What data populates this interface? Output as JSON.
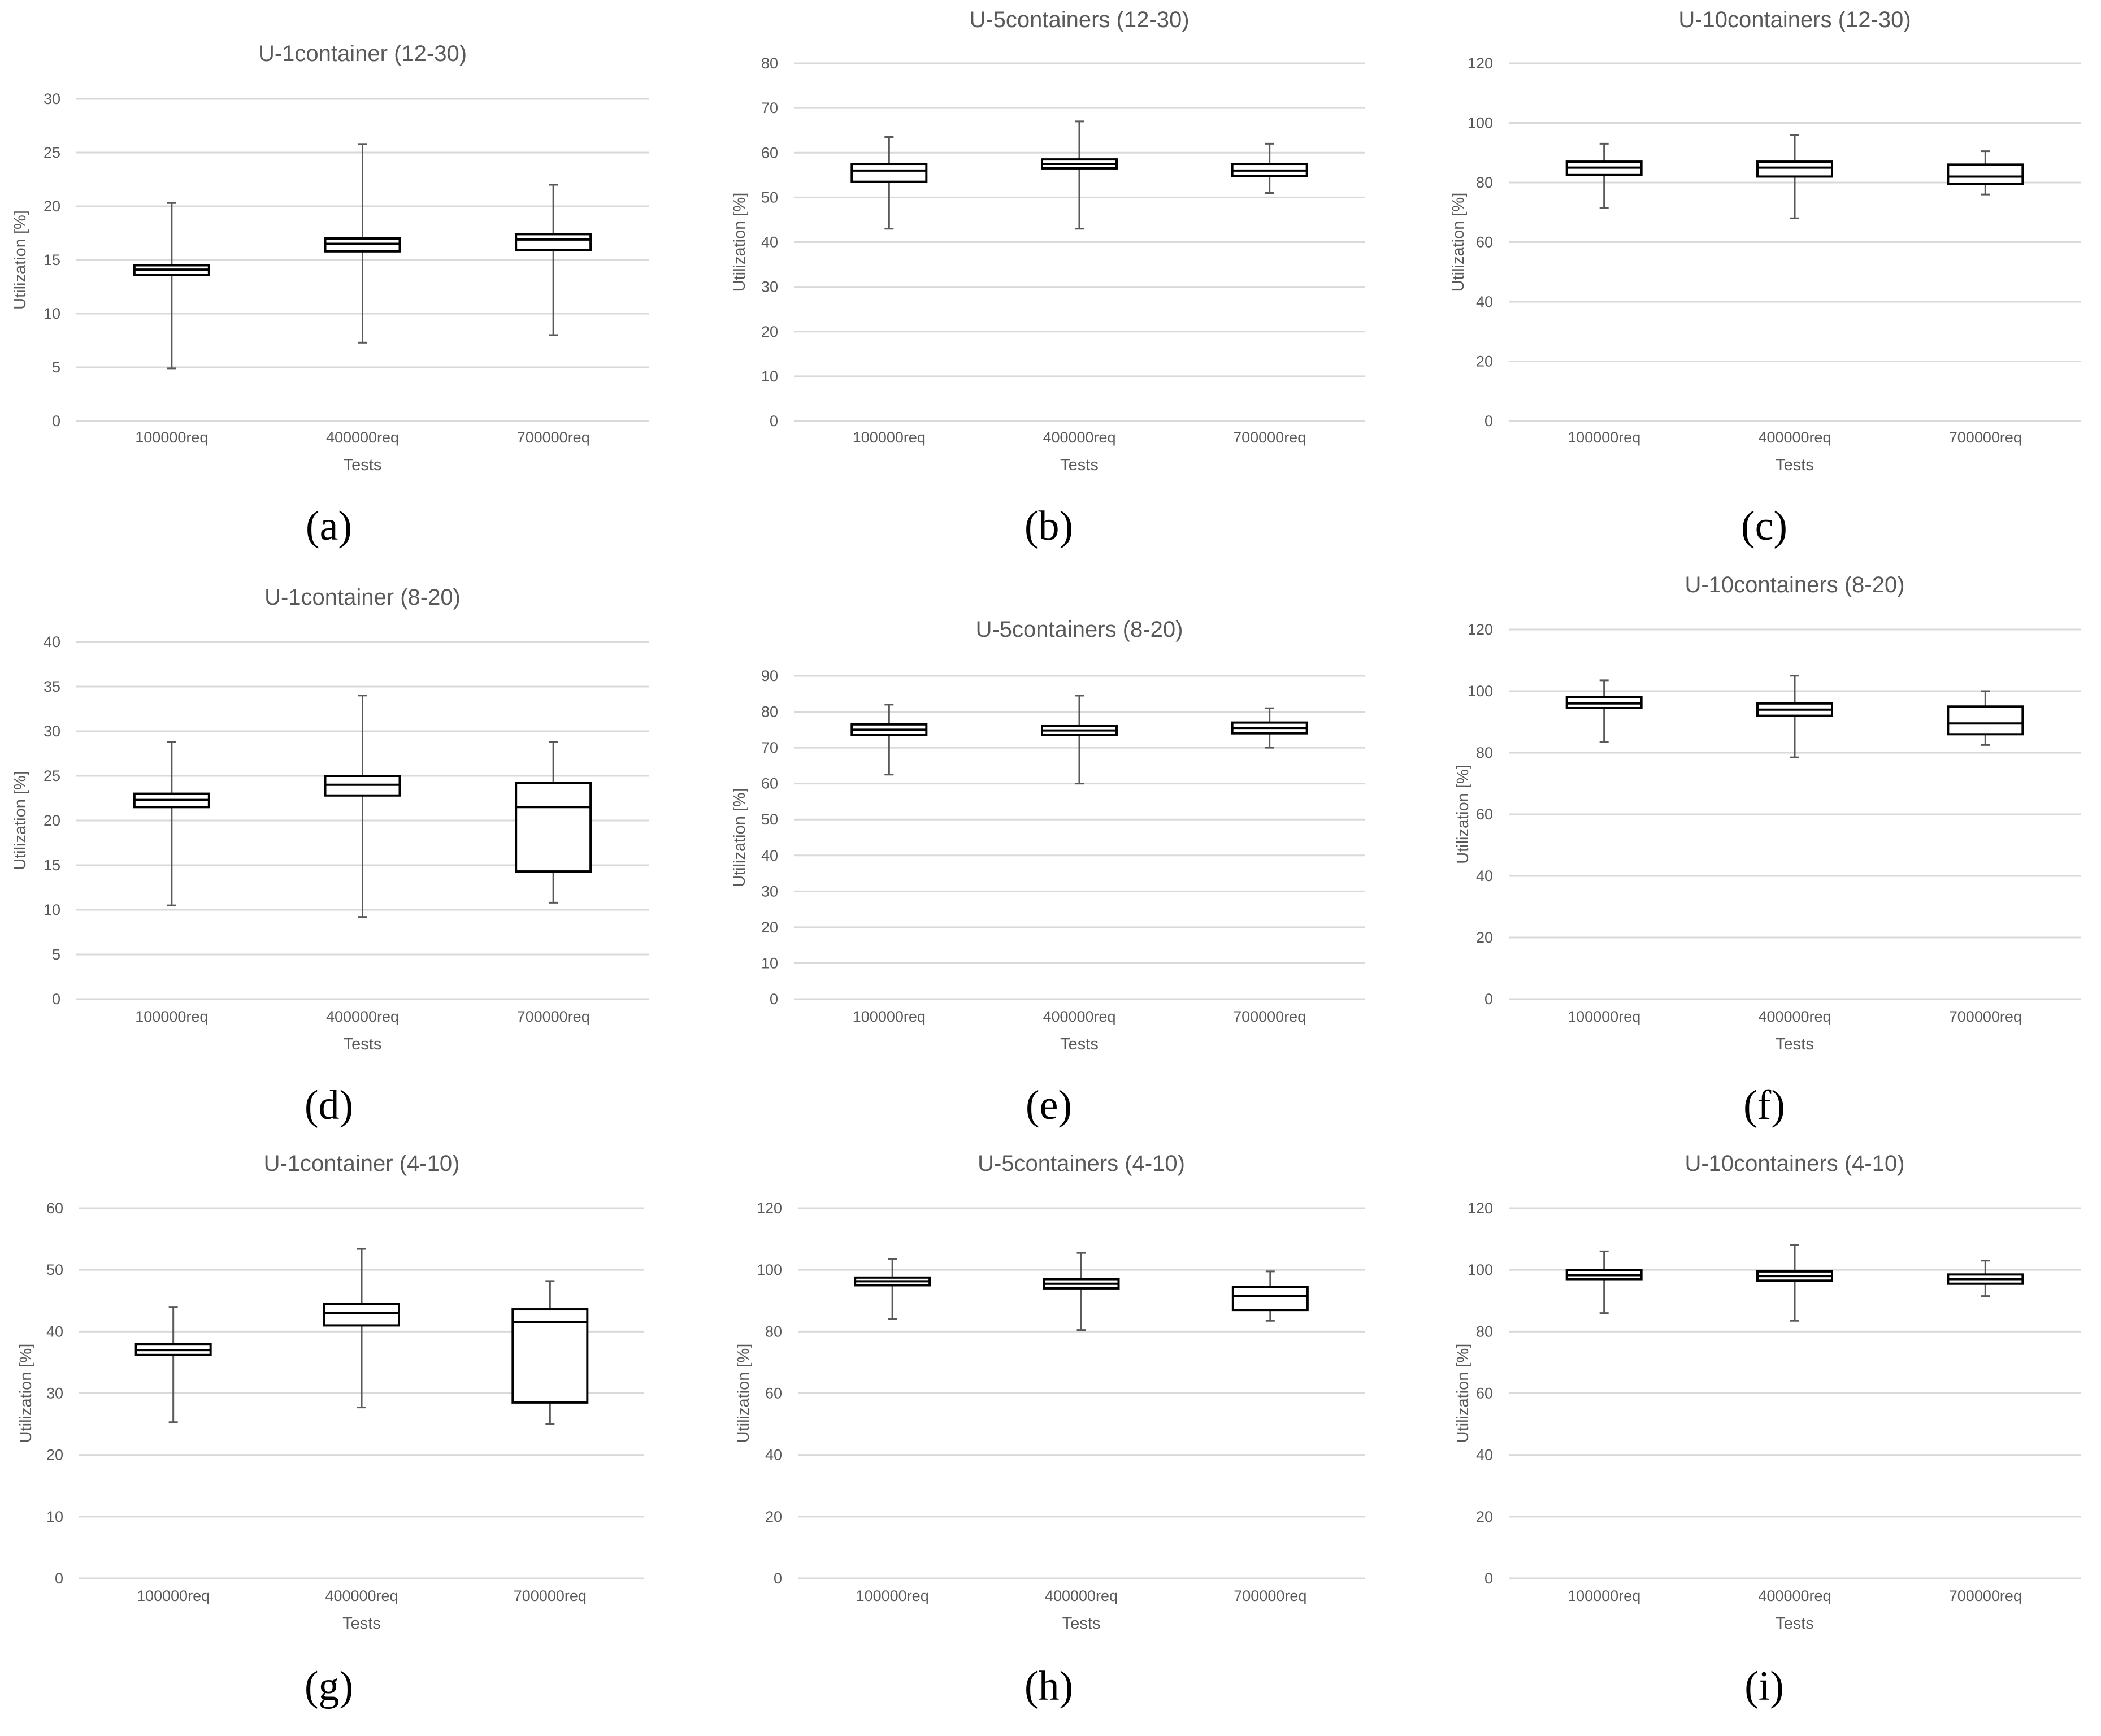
{
  "colors": {
    "grid": "#d9d9d9",
    "text": "#595959",
    "box_stroke": "#000000",
    "whisker": "#595959",
    "background": "#ffffff"
  },
  "chart_data": [
    {
      "type": "box",
      "panel": "(a)",
      "title": "U-1container (12-30)",
      "xlabel": "Tests",
      "ylabel": "Utilization [%]",
      "categories": [
        "100000req",
        "400000req",
        "700000req"
      ],
      "ylim": [
        0,
        30
      ],
      "yticks": [
        0,
        5,
        10,
        15,
        20,
        25,
        30
      ],
      "grid": true,
      "boxes": [
        {
          "min": 4.9,
          "q1": 13.6,
          "median": 14.1,
          "q3": 14.5,
          "max": 20.3
        },
        {
          "min": 7.3,
          "q1": 15.8,
          "median": 16.5,
          "q3": 17.0,
          "max": 25.8
        },
        {
          "min": 8.0,
          "q1": 15.9,
          "median": 16.9,
          "q3": 17.4,
          "max": 22.0
        }
      ]
    },
    {
      "type": "box",
      "panel": "(b)",
      "title": "U-5containers (12-30)",
      "xlabel": "Tests",
      "ylabel": "Utilization [%]",
      "categories": [
        "100000req",
        "400000req",
        "700000req"
      ],
      "ylim": [
        0,
        80
      ],
      "yticks": [
        0,
        10,
        20,
        30,
        40,
        50,
        60,
        70,
        80
      ],
      "grid": true,
      "boxes": [
        {
          "min": 43,
          "q1": 53.5,
          "median": 56,
          "q3": 57.5,
          "max": 63.5
        },
        {
          "min": 43,
          "q1": 56.5,
          "median": 57.5,
          "q3": 58.5,
          "max": 67
        },
        {
          "min": 51,
          "q1": 54.8,
          "median": 56,
          "q3": 57.5,
          "max": 62
        }
      ]
    },
    {
      "type": "box",
      "panel": "(c)",
      "title": "U-10containers (12-30)",
      "xlabel": "Tests",
      "ylabel": "Utilization [%]",
      "categories": [
        "100000req",
        "400000req",
        "700000req"
      ],
      "ylim": [
        0,
        120
      ],
      "yticks": [
        0,
        20,
        40,
        60,
        80,
        100,
        120
      ],
      "grid": true,
      "boxes": [
        {
          "min": 71.5,
          "q1": 82.5,
          "median": 85,
          "q3": 87,
          "max": 93
        },
        {
          "min": 68,
          "q1": 82,
          "median": 85,
          "q3": 87,
          "max": 96
        },
        {
          "min": 76,
          "q1": 79.5,
          "median": 82,
          "q3": 86,
          "max": 90.5
        }
      ]
    },
    {
      "type": "box",
      "panel": "(d)",
      "title": "U-1container (8-20)",
      "xlabel": "Tests",
      "ylabel": "Utilization [%]",
      "categories": [
        "100000req",
        "400000req",
        "700000req"
      ],
      "ylim": [
        0,
        40
      ],
      "yticks": [
        0,
        5,
        10,
        15,
        20,
        25,
        30,
        35,
        40
      ],
      "grid": true,
      "boxes": [
        {
          "min": 10.5,
          "q1": 21.5,
          "median": 22.3,
          "q3": 23,
          "max": 28.8
        },
        {
          "min": 9.2,
          "q1": 22.8,
          "median": 24,
          "q3": 25,
          "max": 34
        },
        {
          "min": 10.8,
          "q1": 14.3,
          "median": 21.5,
          "q3": 24.2,
          "max": 28.8
        }
      ]
    },
    {
      "type": "box",
      "panel": "(e)",
      "title": "U-5containers (8-20)",
      "xlabel": "Tests",
      "ylabel": "Utilization [%]",
      "categories": [
        "100000req",
        "400000req",
        "700000req"
      ],
      "ylim": [
        0,
        90
      ],
      "yticks": [
        0,
        10,
        20,
        30,
        40,
        50,
        60,
        70,
        80,
        90
      ],
      "grid": true,
      "boxes": [
        {
          "min": 62.5,
          "q1": 73.5,
          "median": 75,
          "q3": 76.5,
          "max": 82
        },
        {
          "min": 60,
          "q1": 73.5,
          "median": 74.8,
          "q3": 76,
          "max": 84.5
        },
        {
          "min": 70,
          "q1": 74,
          "median": 75.5,
          "q3": 77,
          "max": 81
        }
      ]
    },
    {
      "type": "box",
      "panel": "(f)",
      "title": "U-10containers (8-20)",
      "xlabel": "Tests",
      "ylabel": "Utilization [%]",
      "categories": [
        "100000req",
        "400000req",
        "700000req"
      ],
      "ylim": [
        0,
        120
      ],
      "yticks": [
        0,
        20,
        40,
        60,
        80,
        100,
        120
      ],
      "grid": true,
      "boxes": [
        {
          "min": 83.5,
          "q1": 94.5,
          "median": 96,
          "q3": 98,
          "max": 103.5
        },
        {
          "min": 78.5,
          "q1": 92,
          "median": 94,
          "q3": 96,
          "max": 105
        },
        {
          "min": 82.5,
          "q1": 86,
          "median": 89.5,
          "q3": 95,
          "max": 100
        }
      ]
    },
    {
      "type": "box",
      "panel": "(g)",
      "title": "U-1container (4-10)",
      "xlabel": "Tests",
      "ylabel": "Utilization [%]",
      "categories": [
        "100000req",
        "400000req",
        "700000req"
      ],
      "ylim": [
        0,
        60
      ],
      "yticks": [
        0,
        10,
        20,
        30,
        40,
        50,
        60
      ],
      "grid": true,
      "boxes": [
        {
          "min": 25.3,
          "q1": 36.2,
          "median": 37,
          "q3": 38,
          "max": 44
        },
        {
          "min": 27.7,
          "q1": 41,
          "median": 43,
          "q3": 44.5,
          "max": 53.4
        },
        {
          "min": 25,
          "q1": 28.5,
          "median": 41.5,
          "q3": 43.6,
          "max": 48.2
        }
      ]
    },
    {
      "type": "box",
      "panel": "(h)",
      "title": "U-5containers (4-10)",
      "xlabel": "Tests",
      "ylabel": "Utilization [%]",
      "categories": [
        "100000req",
        "400000req",
        "700000req"
      ],
      "ylim": [
        0,
        120
      ],
      "yticks": [
        0,
        20,
        40,
        60,
        80,
        100,
        120
      ],
      "grid": true,
      "boxes": [
        {
          "min": 84,
          "q1": 95,
          "median": 96.3,
          "q3": 97.5,
          "max": 103.5
        },
        {
          "min": 80.5,
          "q1": 94,
          "median": 95.5,
          "q3": 97,
          "max": 105.5
        },
        {
          "min": 83.5,
          "q1": 87,
          "median": 91.5,
          "q3": 94.5,
          "max": 99.5
        }
      ]
    },
    {
      "type": "box",
      "panel": "(i)",
      "title": "U-10containers (4-10)",
      "xlabel": "Tests",
      "ylabel": "Utilization [%]",
      "categories": [
        "100000req",
        "400000req",
        "700000req"
      ],
      "ylim": [
        0,
        120
      ],
      "yticks": [
        0,
        20,
        40,
        60,
        80,
        100,
        120
      ],
      "grid": true,
      "boxes": [
        {
          "min": 86,
          "q1": 97,
          "median": 98.3,
          "q3": 100,
          "max": 106
        },
        {
          "min": 83.5,
          "q1": 96.5,
          "median": 98,
          "q3": 99.5,
          "max": 108
        },
        {
          "min": 91.5,
          "q1": 95.5,
          "median": 97,
          "q3": 98.5,
          "max": 103
        }
      ]
    }
  ]
}
